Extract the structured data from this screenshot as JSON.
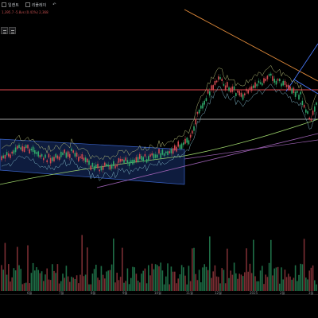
{
  "toolbar": {
    "item1_label": "일캔트",
    "item2_label": "리플레이",
    "undo_icon": "undo-arrow-icon"
  },
  "legend": {
    "text": "1,395.7  -5.8vs (0.41%) 2,368"
  },
  "x_axis": {
    "ticks": [
      "6월",
      "7월",
      "8월",
      "9월",
      "10월",
      "11월",
      "12월",
      "2025",
      "2월",
      "3월"
    ]
  },
  "colors": {
    "background": "#000000",
    "price_up": "#2fa86a",
    "price_down": "#d0494f",
    "resistance_line": "#e0484e",
    "support_line": "#d8d8d8",
    "channel_fill": "#1f3d8a",
    "trendline_orange": "#e08a3a",
    "trendline_purple": "#9a5fb0"
  }
}
